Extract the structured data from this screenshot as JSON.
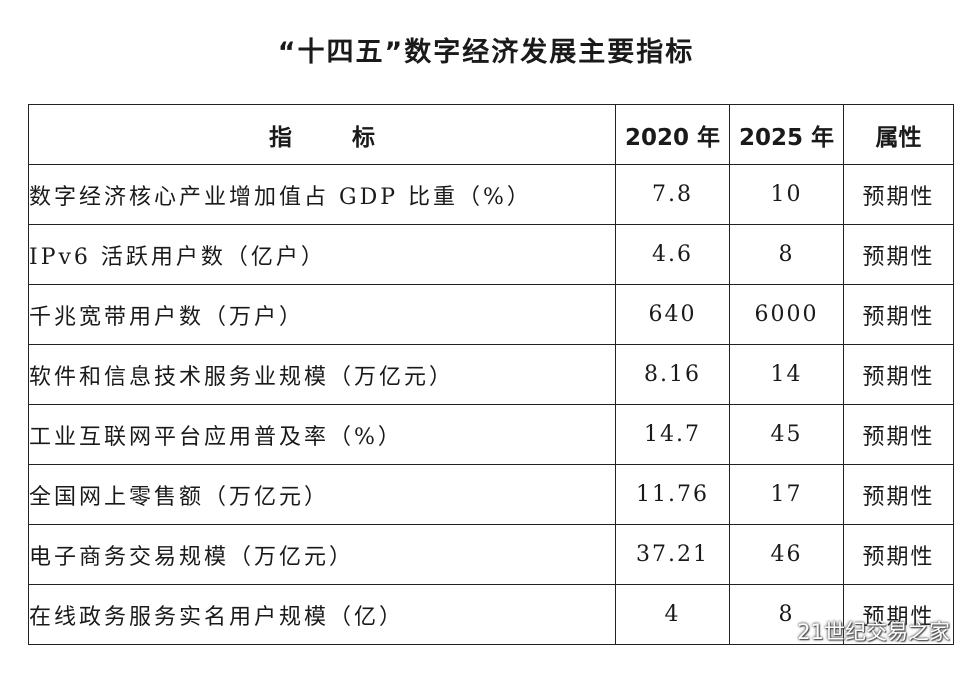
{
  "title": "“十四五”数字经济发展主要指标",
  "table": {
    "headers": [
      "指标",
      "2020 年",
      "2025 年",
      "属性"
    ],
    "rows": [
      {
        "name": "数字经济核心产业增加值占 GDP 比重（%）",
        "v2020": "7.8",
        "v2025": "10",
        "attr": "预期性"
      },
      {
        "name": "IPv6 活跃用户数（亿户）",
        "v2020": "4.6",
        "v2025": "8",
        "attr": "预期性"
      },
      {
        "name": "千兆宽带用户数（万户）",
        "v2020": "640",
        "v2025": "6000",
        "attr": "预期性"
      },
      {
        "name": "软件和信息技术服务业规模（万亿元）",
        "v2020": "8.16",
        "v2025": "14",
        "attr": "预期性"
      },
      {
        "name": "工业互联网平台应用普及率（%）",
        "v2020": "14.7",
        "v2025": "45",
        "attr": "预期性"
      },
      {
        "name": "全国网上零售额（万亿元）",
        "v2020": "11.76",
        "v2025": "17",
        "attr": "预期性"
      },
      {
        "name": "电子商务交易规模（万亿元）",
        "v2020": "37.21",
        "v2025": "46",
        "attr": "预期性"
      },
      {
        "name": "在线政务服务实名用户规模（亿）",
        "v2020": "4",
        "v2025": "8",
        "attr": "预期性"
      }
    ]
  },
  "watermark": {
    "icon": "wechat-icon",
    "text": "21世纪交易之家"
  }
}
